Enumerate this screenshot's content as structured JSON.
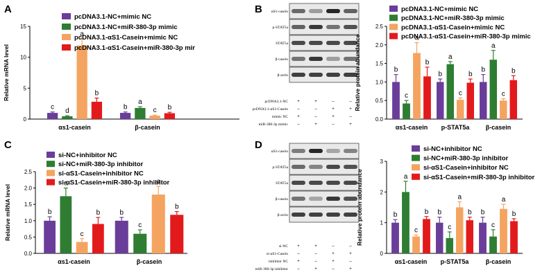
{
  "colors": {
    "purple": "#6a3d9a",
    "green": "#2e7d32",
    "orange": "#f4a460",
    "red": "#e31a1c"
  },
  "panels": {
    "A": {
      "letter": "A",
      "chart_data": {
        "type": "bar",
        "ylabel": "Relative mRNA level",
        "ylim": [
          0,
          15
        ],
        "yticks": [
          "0",
          "5",
          "10",
          "15"
        ],
        "categories": [
          "αs1-casein",
          "β-casein"
        ],
        "legend_position": "top",
        "series": [
          {
            "name": "pcDNA3.1-NC+mimic NC",
            "color_key": "purple",
            "values": [
              1.0,
              1.0
            ],
            "errors": [
              0.15,
              0.15
            ],
            "labels": [
              "c",
              "b"
            ]
          },
          {
            "name": "pcDNA3.1-NC+miR-380-3p mimic",
            "color_key": "green",
            "values": [
              0.45,
              1.8
            ],
            "errors": [
              0.1,
              0.2
            ],
            "labels": [
              "d",
              "a"
            ]
          },
          {
            "name": "pcDNA3.1-αS1-Casein+mimic NC",
            "color_key": "orange",
            "values": [
              11.9,
              0.55
            ],
            "errors": [
              1.1,
              0.1
            ],
            "labels": [
              "a",
              "c"
            ]
          },
          {
            "name": "pcDNA3.1-αS1-Casein+miR-380-3p mir",
            "color_key": "red",
            "values": [
              2.8,
              0.95
            ],
            "errors": [
              0.6,
              0.15
            ],
            "labels": [
              "b",
              "b"
            ]
          }
        ]
      }
    },
    "B": {
      "letter": "B",
      "blot_labels": [
        "αS1-casein",
        "p-STAT5a",
        "STAT5a",
        "β-casein",
        "β-actin"
      ],
      "conditions": [
        {
          "label": "pcDNA3.1-NC",
          "signs": [
            "+",
            "+",
            "–",
            "–"
          ]
        },
        {
          "label": "pcDNA3.1-αS1-Casein",
          "signs": [
            "–",
            "–",
            "+",
            "+"
          ]
        },
        {
          "label": "mimic NC",
          "signs": [
            "+",
            "–",
            "+",
            "–"
          ]
        },
        {
          "label": "miR-380-3p mimic",
          "signs": [
            "–",
            "+",
            "–",
            "+"
          ]
        }
      ],
      "chart_data": {
        "type": "bar",
        "ylabel": "Relative protein abundance",
        "ylim": [
          0,
          2.5
        ],
        "yticks": [
          "0.0",
          "0.5",
          "1.0",
          "1.5",
          "2.0",
          "2.5"
        ],
        "categories": [
          "αs1-casein",
          "p-STAT5a",
          "β-casein"
        ],
        "legend_position": "top",
        "series": [
          {
            "name": "pcDNA3.1-NC+mimic NC",
            "color_key": "purple",
            "values": [
              1.0,
              1.0,
              1.0
            ],
            "errors": [
              0.2,
              0.08,
              0.2
            ],
            "labels": [
              "b",
              "b",
              "b"
            ]
          },
          {
            "name": "pcDNA3.1-NC+miR-380-3p mimic",
            "color_key": "green",
            "values": [
              0.42,
              1.48,
              1.6
            ],
            "errors": [
              0.08,
              0.07,
              0.25
            ],
            "labels": [
              "c",
              "a",
              "a"
            ]
          },
          {
            "name": "pcDNA3.1-αS1-Casein+mimic NC",
            "color_key": "orange",
            "values": [
              1.78,
              0.52,
              0.5
            ],
            "errors": [
              0.28,
              0.05,
              0.05
            ],
            "labels": [
              "a",
              "c",
              "c"
            ]
          },
          {
            "name": "pcDNA3.1-αS1-Casein+miR-380-3p mimic",
            "color_key": "red",
            "values": [
              1.15,
              0.98,
              1.05
            ],
            "errors": [
              0.25,
              0.1,
              0.12
            ],
            "labels": [
              "b",
              "b",
              "b"
            ]
          }
        ]
      }
    },
    "C": {
      "letter": "C",
      "chart_data": {
        "type": "bar",
        "ylabel": "Relative mRNA level",
        "ylim": [
          0,
          2.5
        ],
        "yticks": [
          "0.0",
          "0.5",
          "1.0",
          "1.5",
          "2.0",
          "2.5"
        ],
        "categories": [
          "αs1-casein",
          "β-casein"
        ],
        "legend_position": "top",
        "series": [
          {
            "name": "si-NC+inhibitor NC",
            "color_key": "purple",
            "values": [
              1.0,
              1.0
            ],
            "errors": [
              0.12,
              0.1
            ],
            "labels": [
              "b",
              "b"
            ]
          },
          {
            "name": "si-NC+miR-380-3p inhibitor",
            "color_key": "green",
            "values": [
              1.75,
              0.6
            ],
            "errors": [
              0.25,
              0.12
            ],
            "labels": [
              "a",
              "c"
            ]
          },
          {
            "name": "si-αS1-Casein+inhibitor NC",
            "color_key": "orange",
            "values": [
              0.35,
              1.8
            ],
            "errors": [
              0.1,
              0.25
            ],
            "labels": [
              "c",
              "a"
            ]
          },
          {
            "name": "si-αS1-Casein+miR-380-3p inhibitor",
            "color_key": "red",
            "values": [
              0.9,
              1.18
            ],
            "errors": [
              0.2,
              0.1
            ],
            "labels": [
              "b",
              "b"
            ]
          }
        ]
      }
    },
    "D": {
      "letter": "D",
      "blot_labels": [
        "αS1-casein",
        "p-STAT5a",
        "STAT5a",
        "β-casein",
        "β-actin"
      ],
      "conditions": [
        {
          "label": "si-NC",
          "signs": [
            "+",
            "+",
            "–",
            "–"
          ]
        },
        {
          "label": "si-αS1-Casein",
          "signs": [
            "–",
            "–",
            "+",
            "+"
          ]
        },
        {
          "label": "inhibitor NC",
          "signs": [
            "+",
            "–",
            "+",
            "–"
          ]
        },
        {
          "label": "miR-380-3p inhibitor",
          "signs": [
            "–",
            "+",
            "–",
            "+"
          ]
        }
      ],
      "chart_data": {
        "type": "bar",
        "ylabel": "Relative protein abundance",
        "ylim": [
          0,
          3
        ],
        "yticks": [
          "0",
          "1",
          "2",
          "3"
        ],
        "categories": [
          "αs1-casein",
          "p-STAT5a",
          "β-casein"
        ],
        "legend_position": "top",
        "series": [
          {
            "name": "si-NC+inhibitor NC",
            "color_key": "purple",
            "values": [
              1.0,
              1.0,
              1.0
            ],
            "errors": [
              0.1,
              0.18,
              0.18
            ],
            "labels": [
              "b",
              "b",
              "b"
            ]
          },
          {
            "name": "si-NC+miR-380-3p inhibitor",
            "color_key": "green",
            "values": [
              2.0,
              0.5,
              0.55
            ],
            "errors": [
              0.35,
              0.2,
              0.22
            ],
            "labels": [
              "a",
              "c",
              "c"
            ]
          },
          {
            "name": "si-αS1-Casein+inhibitor NC",
            "color_key": "orange",
            "values": [
              0.55,
              1.5,
              1.45
            ],
            "errors": [
              0.05,
              0.18,
              0.15
            ],
            "labels": [
              "c",
              "a",
              "a"
            ]
          },
          {
            "name": "si-αS1-Casein+miR-380-3p inhibitor",
            "color_key": "red",
            "values": [
              1.12,
              1.08,
              1.05
            ],
            "errors": [
              0.08,
              0.1,
              0.08
            ],
            "labels": [
              "b",
              "b",
              "b"
            ]
          }
        ]
      }
    }
  }
}
